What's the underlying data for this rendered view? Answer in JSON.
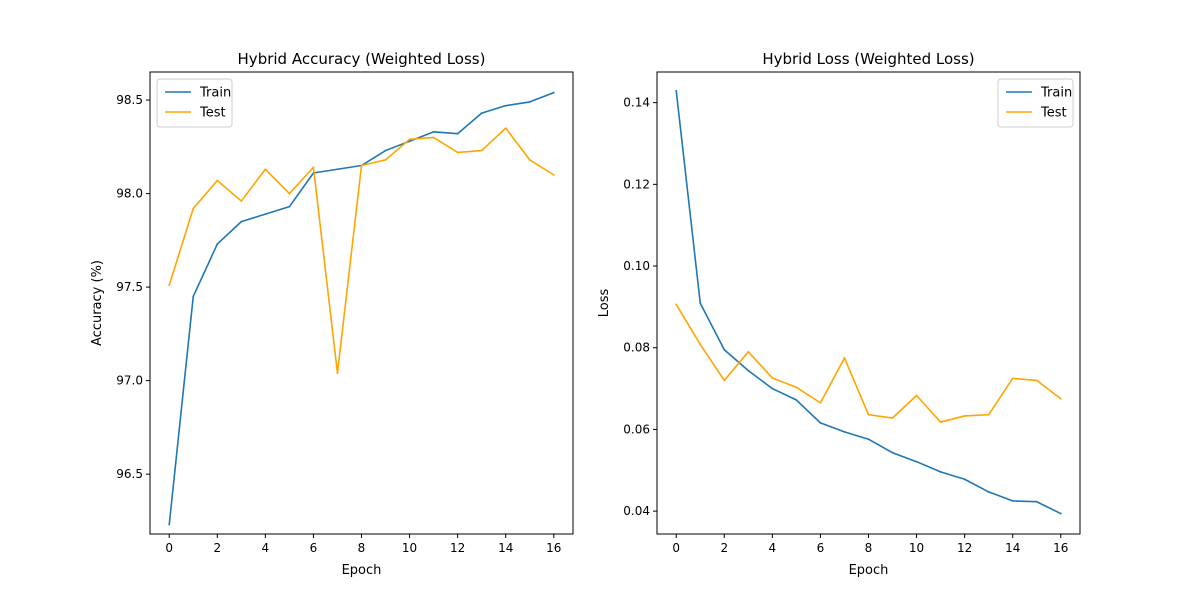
{
  "chart_data": [
    {
      "type": "line",
      "title": "Hybrid Accuracy (Weighted Loss)",
      "xlabel": "Epoch",
      "ylabel": "Accuracy (%)",
      "xlim": [
        -0.8,
        16.8
      ],
      "ylim": [
        96.18,
        98.65
      ],
      "xticks": [
        0,
        2,
        4,
        6,
        8,
        10,
        12,
        14,
        16
      ],
      "yticks": [
        96.5,
        97.0,
        97.5,
        98.0,
        98.5
      ],
      "ytick_labels": [
        "96.5",
        "97.0",
        "97.5",
        "98.0",
        "98.5"
      ],
      "legend_position": "top-left",
      "grid": false,
      "x": [
        0,
        1,
        2,
        3,
        4,
        5,
        6,
        7,
        8,
        9,
        10,
        11,
        12,
        13,
        14,
        15,
        16
      ],
      "series": [
        {
          "name": "Train",
          "color": "#1f77b4",
          "values": [
            96.23,
            97.45,
            97.73,
            97.85,
            97.89,
            97.93,
            98.11,
            98.13,
            98.15,
            98.23,
            98.28,
            98.33,
            98.32,
            98.43,
            98.47,
            98.49,
            98.54
          ]
        },
        {
          "name": "Test",
          "color": "#ffa500",
          "values": [
            97.51,
            97.92,
            98.07,
            97.96,
            98.13,
            98.0,
            98.14,
            97.04,
            98.15,
            98.18,
            98.29,
            98.3,
            98.22,
            98.23,
            98.35,
            98.18,
            98.1
          ]
        }
      ]
    },
    {
      "type": "line",
      "title": "Hybrid Loss (Weighted Loss)",
      "xlabel": "Epoch",
      "ylabel": "Loss",
      "xlim": [
        -0.8,
        16.8
      ],
      "ylim": [
        0.0344,
        0.1475
      ],
      "xticks": [
        0,
        2,
        4,
        6,
        8,
        10,
        12,
        14,
        16
      ],
      "yticks": [
        0.04,
        0.06,
        0.08,
        0.1,
        0.12,
        0.14
      ],
      "ytick_labels": [
        "0.04",
        "0.06",
        "0.08",
        "0.10",
        "0.12",
        "0.14"
      ],
      "legend_position": "top-right",
      "grid": false,
      "x": [
        0,
        1,
        2,
        3,
        4,
        5,
        6,
        7,
        8,
        9,
        10,
        11,
        12,
        13,
        14,
        15,
        16
      ],
      "series": [
        {
          "name": "Train",
          "color": "#1f77b4",
          "values": [
            0.1429,
            0.0909,
            0.0795,
            0.0744,
            0.07,
            0.0672,
            0.0616,
            0.0594,
            0.0576,
            0.0543,
            0.0521,
            0.0496,
            0.0478,
            0.0447,
            0.0425,
            0.0423,
            0.0394
          ]
        },
        {
          "name": "Test",
          "color": "#ffa500",
          "values": [
            0.0906,
            0.0808,
            0.072,
            0.079,
            0.0726,
            0.0703,
            0.0665,
            0.0775,
            0.0636,
            0.0628,
            0.0683,
            0.0618,
            0.0633,
            0.0636,
            0.0725,
            0.072,
            0.0675
          ]
        }
      ]
    }
  ]
}
